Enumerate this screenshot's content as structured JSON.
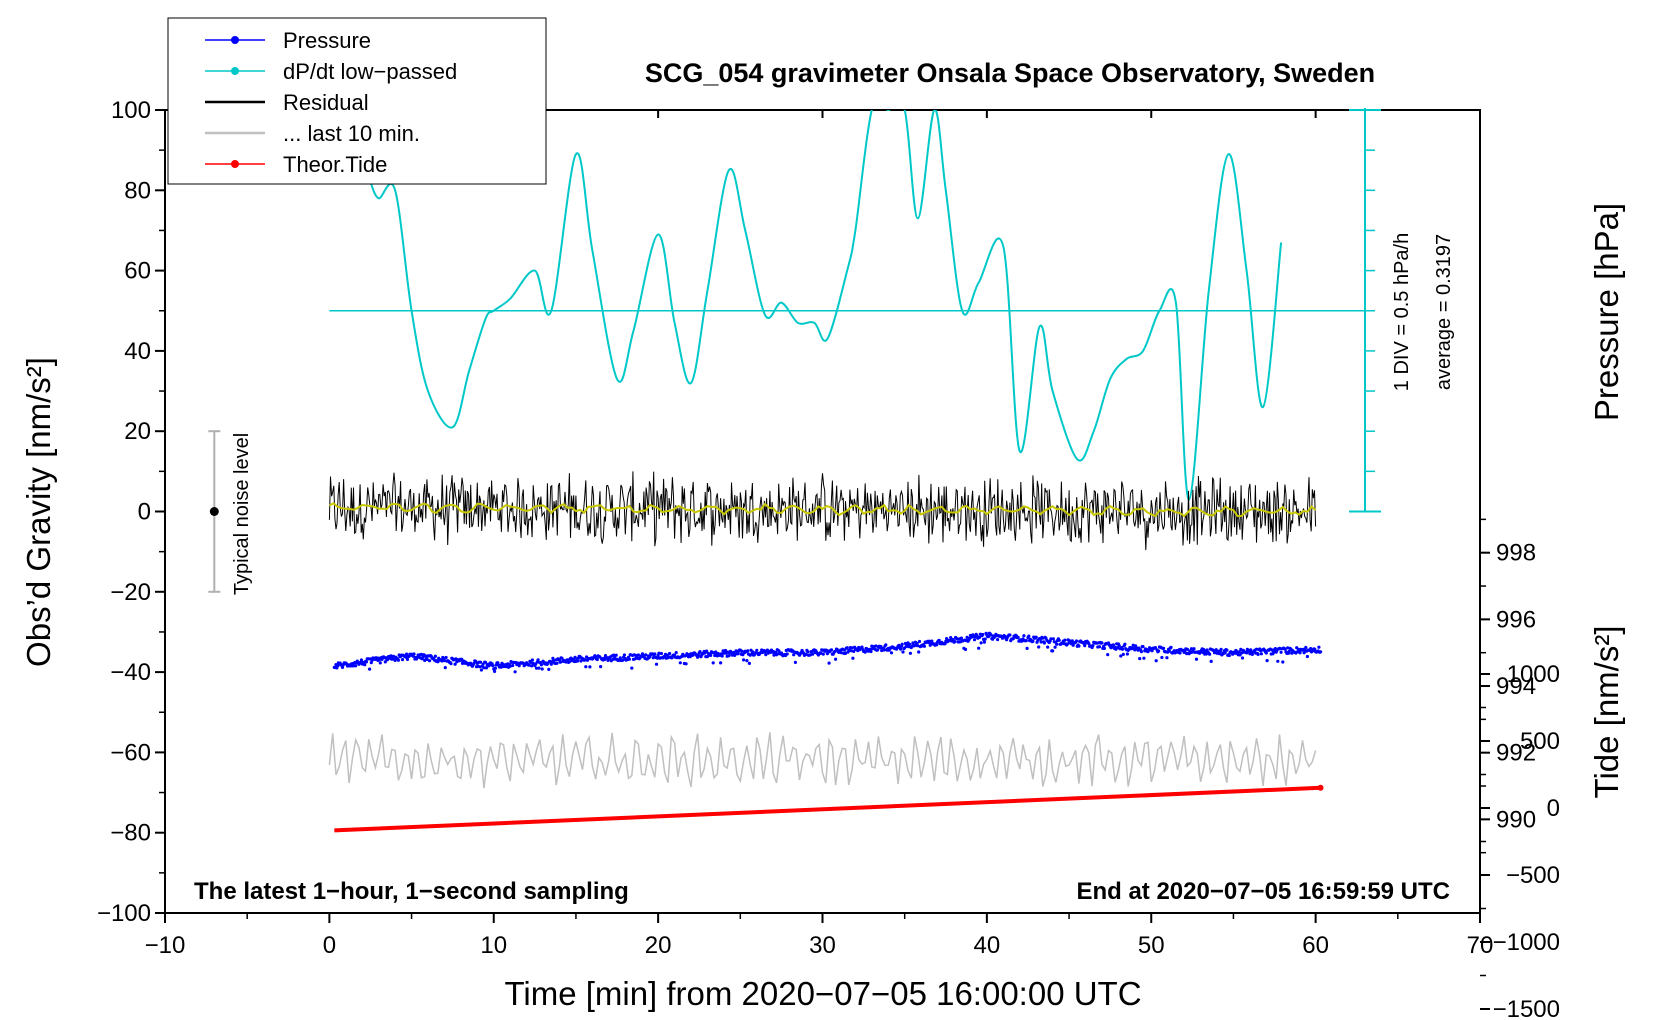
{
  "chart_data": {
    "type": "line",
    "title": "SCG_054 gravimeter Onsala Space Observatory, Sweden",
    "xlabel": "Time [min] from 2020−07−05 16:00:00 UTC",
    "ylabel": "Obs’d Gravity [nm/s²]",
    "y2label": "Pressure [hPa]",
    "y3label": "Tide [nm/s²]",
    "xlim": [
      -10,
      70
    ],
    "ylim": [
      -100,
      100
    ],
    "pressure_lim": [
      988,
      1000
    ],
    "tide_lim": [
      -1500,
      1250
    ],
    "x_ticks": [
      "−10",
      "0",
      "10",
      "20",
      "30",
      "40",
      "50",
      "60",
      "70"
    ],
    "y_ticks": [
      "100",
      "80",
      "60",
      "40",
      "20",
      "0",
      "−20",
      "−40",
      "−60",
      "−80",
      "−100"
    ],
    "pressure_ticks": [
      "998",
      "996",
      "994",
      "992",
      "990"
    ],
    "tide_ticks": [
      "1000",
      "500",
      "0",
      "−500",
      "−1000",
      "−1500"
    ],
    "legend": [
      {
        "label": "Pressure",
        "color": "#0000ff",
        "marker": true
      },
      {
        "label": "dP/dt low−passed",
        "color": "#00c8c8",
        "marker": true
      },
      {
        "label": "Residual",
        "color": "#000000",
        "marker": false
      },
      {
        "label": "... last 10 min.",
        "color": "#c0c0c0",
        "marker": false
      },
      {
        "label": "Theor.Tide",
        "color": "#ff0000",
        "marker": true
      }
    ],
    "annotations": {
      "left": "The latest 1−hour, 1−second sampling",
      "right": "End at 2020−07−05 16:59:59 UTC",
      "noise": "Typical noise level",
      "div": "1 DIV = 0.5 hPa/h",
      "average": "average = 0.3197"
    },
    "noise_bar": {
      "x": -7,
      "center": 0,
      "low": -20,
      "high": 20
    },
    "series": [
      {
        "name": "Pressure",
        "axis": "pressure",
        "x": [
          0.3,
          5,
          10,
          15,
          20,
          25,
          30,
          35,
          40,
          43,
          45,
          50,
          55,
          60.3
        ],
        "values": [
          994.6,
          994.9,
          994.6,
          994.8,
          994.9,
          995.0,
          995.0,
          995.2,
          995.5,
          995.4,
          995.3,
          995.1,
          995.0,
          995.1
        ]
      },
      {
        "name": "dP/dt low−passed",
        "axis": "gravity",
        "x": [
          2.5,
          3,
          4,
          5,
          6,
          7.5,
          8.5,
          9.5,
          10,
          11,
          12.5,
          13.5,
          15,
          16,
          17.5,
          18.5,
          20,
          21,
          22,
          23,
          24.3,
          25.3,
          26.5,
          27.5,
          28.5,
          29.5,
          30.3,
          31.5,
          32,
          33,
          34,
          35,
          35.8,
          36.8,
          37.5,
          38.5,
          39.5,
          41,
          42,
          43.2,
          44,
          45.5,
          46.5,
          47.5,
          48.5,
          49.5,
          50.5,
          51.5,
          52.3,
          53.5,
          54.7,
          55.8,
          56.8,
          57.9
        ],
        "values": [
          82,
          78,
          80,
          50,
          30,
          21,
          35,
          48,
          50,
          53,
          60,
          50,
          89,
          65,
          33,
          45,
          69,
          47,
          32,
          55,
          85,
          70,
          49,
          52,
          47,
          47,
          43,
          60,
          70,
          100,
          100,
          100,
          73,
          100,
          80,
          50,
          57,
          66,
          15,
          46,
          30,
          13,
          20,
          33,
          38,
          40,
          50,
          52,
          3,
          55,
          89,
          60,
          26,
          67
        ]
      },
      {
        "name": "Residual",
        "axis": "gravity",
        "x": [
          0,
          60
        ],
        "values": [
          1,
          0
        ],
        "range": [
          -13,
          12
        ]
      },
      {
        "name": "... last 10 min.",
        "axis": "gravity",
        "x": [
          0,
          60
        ],
        "values": [
          -62,
          -62
        ],
        "range": [
          -72,
          -54
        ]
      },
      {
        "name": "Theor.Tide",
        "axis": "tide",
        "x": [
          0.3,
          60.3
        ],
        "values": [
          -167,
          151
        ]
      }
    ],
    "dpdt_average_line": 50
  }
}
